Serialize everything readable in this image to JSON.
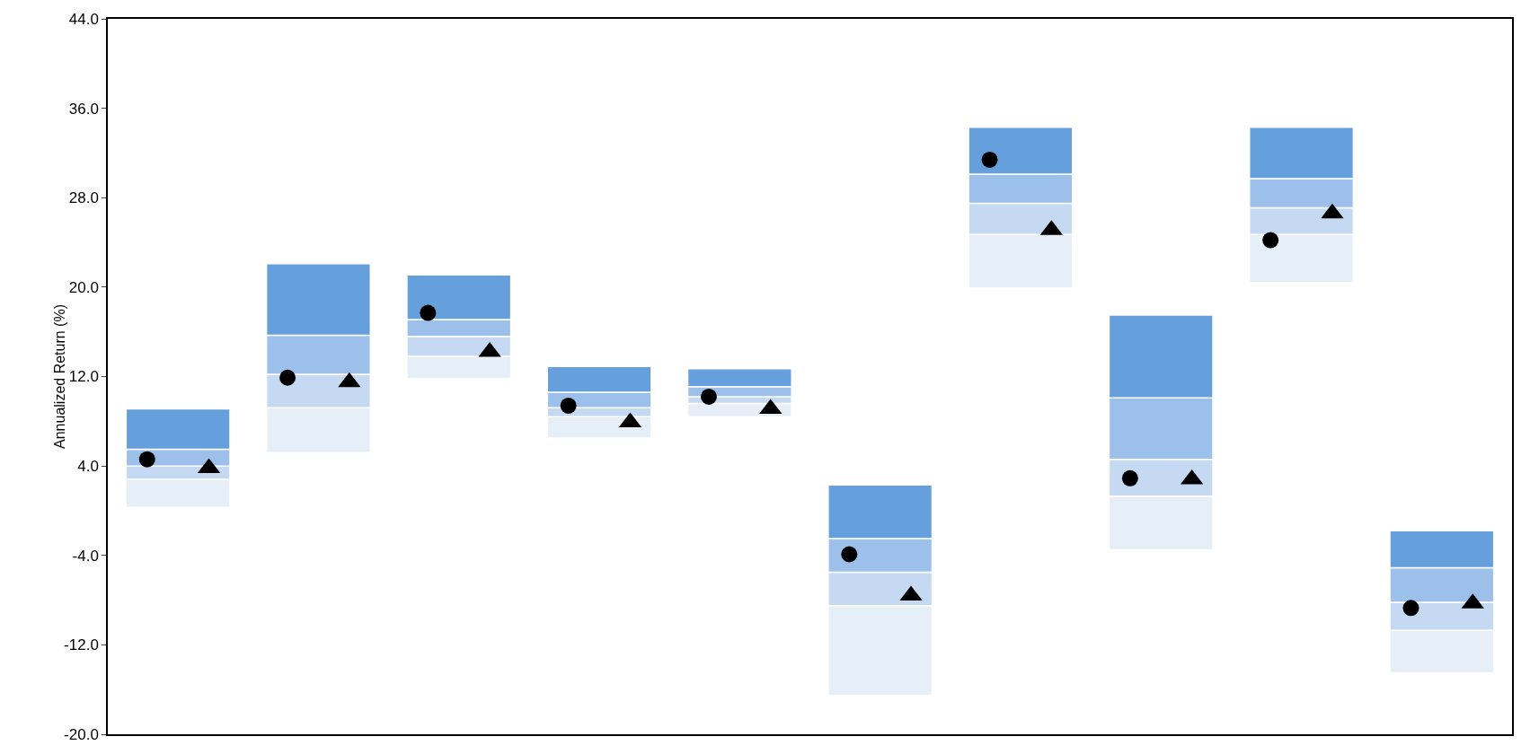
{
  "chart_data": {
    "type": "bar",
    "ylabel": "Annualized Return (%)",
    "categories": [
      null,
      null,
      null,
      null,
      null,
      null,
      null,
      null,
      null,
      null
    ],
    "series": [
      {
        "color": "#e6eef8",
        "base": [
          0.3,
          5.2,
          11.8,
          6.5,
          8.4,
          -16.5,
          19.9,
          -3.5,
          20.4,
          -14.5
        ],
        "values": [
          2.5,
          4.0,
          2.0,
          1.9,
          1.2,
          8.0,
          4.8,
          4.8,
          4.3,
          3.8
        ]
      },
      {
        "color": "#c5daf2",
        "base": [
          2.8,
          9.2,
          13.8,
          8.4,
          9.6,
          -8.5,
          24.7,
          1.3,
          24.7,
          -10.7
        ],
        "values": [
          1.2,
          3.0,
          1.8,
          0.8,
          0.6,
          3.0,
          2.8,
          3.3,
          2.4,
          2.5
        ]
      },
      {
        "color": "#9dc0ea",
        "base": [
          4.0,
          12.2,
          15.6,
          9.2,
          10.2,
          -5.5,
          27.5,
          4.6,
          27.1,
          -8.2
        ],
        "values": [
          1.5,
          3.5,
          1.5,
          1.4,
          0.9,
          3.0,
          2.6,
          5.5,
          2.6,
          3.1
        ]
      },
      {
        "color": "#659fdc",
        "base": [
          5.5,
          15.7,
          17.1,
          10.6,
          11.1,
          -2.5,
          30.1,
          10.1,
          29.7,
          -5.1
        ],
        "values": [
          3.6,
          6.4,
          4.0,
          2.3,
          1.6,
          4.8,
          4.2,
          7.4,
          4.6,
          3.3
        ]
      },
      {
        "type": "scatter",
        "marker": "circle",
        "color": "#000000",
        "values": [
          4.6,
          11.9,
          17.7,
          9.4,
          10.2,
          -3.9,
          31.4,
          2.9,
          24.2,
          -8.7
        ]
      },
      {
        "type": "scatter",
        "marker": "triangle",
        "color": "#000000",
        "values": [
          3.8,
          11.5,
          14.2,
          7.9,
          9.1,
          -7.6,
          25.1,
          2.8,
          26.6,
          -8.3
        ]
      }
    ],
    "ylim": [
      -20,
      44
    ],
    "yticks": [
      {
        "value": -20,
        "label": "-20.0"
      },
      {
        "value": -12,
        "label": "-12.0"
      },
      {
        "value": -4,
        "label": "-4.0"
      },
      {
        "value": 4,
        "label": "4.0"
      },
      {
        "value": 12,
        "label": "12.0"
      },
      {
        "value": 20,
        "label": "20.0"
      },
      {
        "value": 28,
        "label": "28.0"
      },
      {
        "value": 36,
        "label": "36.0"
      },
      {
        "value": 44,
        "label": "44.0"
      }
    ],
    "grid": false,
    "tick_labels": "y"
  }
}
